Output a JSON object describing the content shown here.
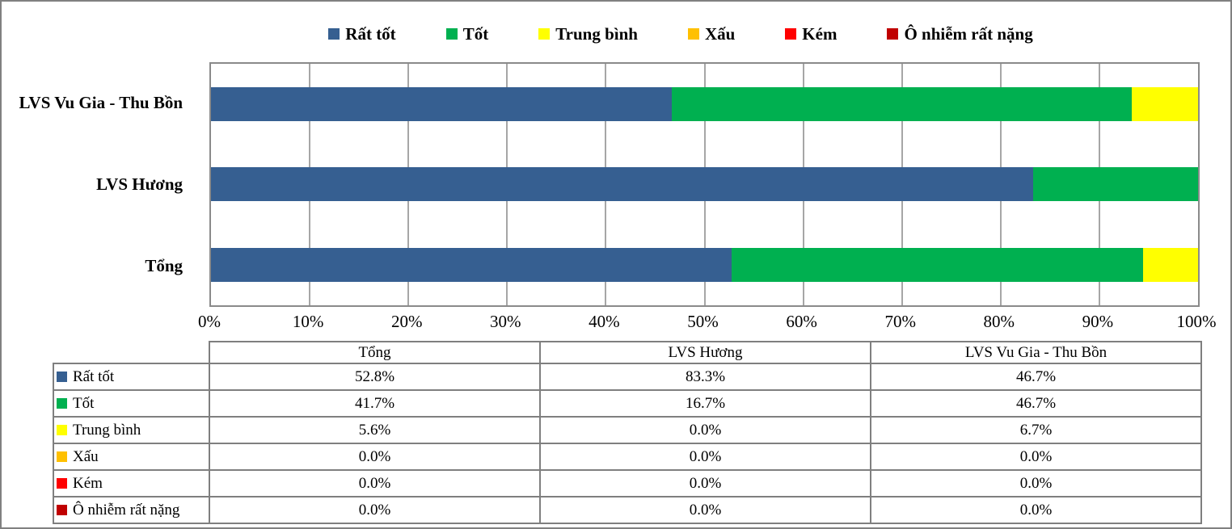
{
  "chart_data": {
    "type": "bar",
    "subtype": "stacked-horizontal-100percent",
    "orientation": "horizontal",
    "categories": [
      "LVS Vu Gia - Thu Bồn",
      "LVS Hương",
      "Tổng"
    ],
    "series": [
      {
        "name": "Rất tốt",
        "color": "#365F91",
        "values": [
          46.7,
          83.3,
          52.8
        ]
      },
      {
        "name": "Tốt",
        "color": "#00B050",
        "values": [
          46.7,
          16.7,
          41.7
        ]
      },
      {
        "name": "Trung bình",
        "color": "#FFFF00",
        "values": [
          6.7,
          0.0,
          5.6
        ]
      },
      {
        "name": "Xấu",
        "color": "#FFC000",
        "values": [
          0.0,
          0.0,
          0.0
        ]
      },
      {
        "name": "Kém",
        "color": "#FF0000",
        "values": [
          0.0,
          0.0,
          0.0
        ]
      },
      {
        "name": "Ô nhiễm rất nặng",
        "color": "#C00000",
        "values": [
          0.0,
          0.0,
          0.0
        ]
      }
    ],
    "xticks": [
      "0%",
      "10%",
      "20%",
      "30%",
      "40%",
      "50%",
      "60%",
      "70%",
      "80%",
      "90%",
      "100%"
    ],
    "xlim": [
      0,
      100
    ],
    "grid": "vertical-gridlines-on",
    "legend_position": "top",
    "title": "",
    "xlabel": "",
    "ylabel": ""
  },
  "table": {
    "columns": [
      "Tổng",
      "LVS Hương",
      "LVS Vu Gia - Thu Bồn"
    ],
    "rows": [
      {
        "label": "Rất tốt",
        "color": "#365F91",
        "values": [
          "52.8%",
          "83.3%",
          "46.7%"
        ]
      },
      {
        "label": "Tốt",
        "color": "#00B050",
        "values": [
          "41.7%",
          "16.7%",
          "46.7%"
        ]
      },
      {
        "label": "Trung bình",
        "color": "#FFFF00",
        "values": [
          "5.6%",
          "0.0%",
          "6.7%"
        ]
      },
      {
        "label": "Xấu",
        "color": "#FFC000",
        "values": [
          "0.0%",
          "0.0%",
          "0.0%"
        ]
      },
      {
        "label": "Kém",
        "color": "#FF0000",
        "values": [
          "0.0%",
          "0.0%",
          "0.0%"
        ]
      },
      {
        "label": "Ô nhiễm rất nặng",
        "color": "#C00000",
        "values": [
          "0.0%",
          "0.0%",
          "0.0%"
        ]
      }
    ]
  },
  "colors": {
    "plot_border": "#8a8a8a",
    "gridline": "#a6a6a6",
    "table_border": "#7f7f7f",
    "background": "#ffffff"
  }
}
